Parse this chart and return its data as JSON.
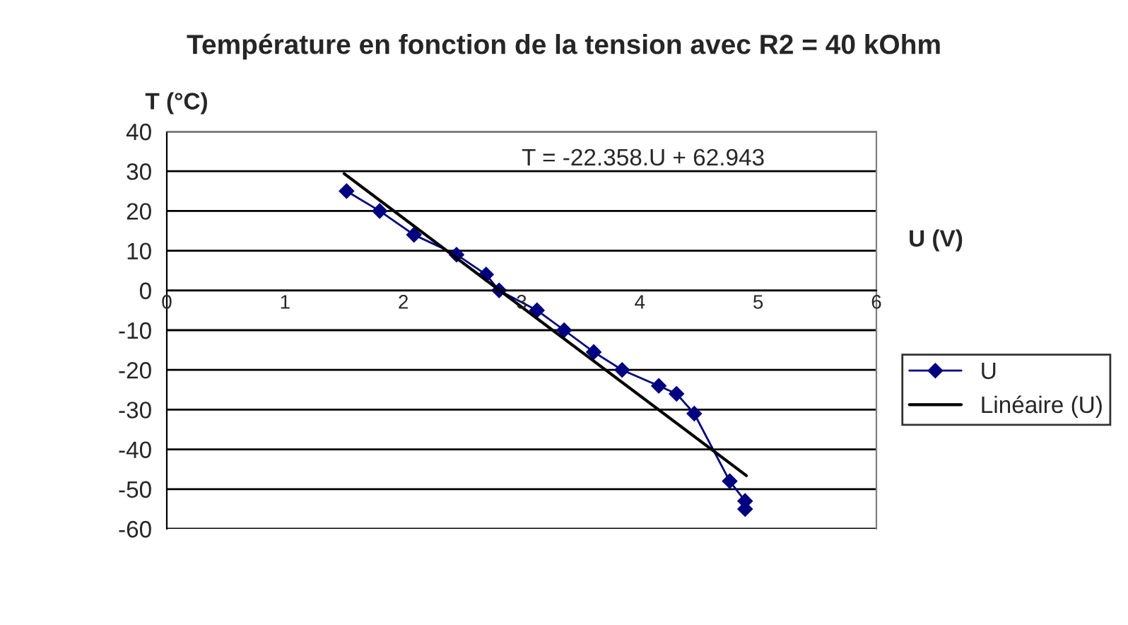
{
  "chart_data": {
    "type": "line",
    "title": "Température en fonction de la tension avec R2 = 40 kOhm",
    "xlabel": "U (V)",
    "ylabel": "T (°C)",
    "annotations": [
      "T = -22.358.U + 62.943"
    ],
    "series": [
      {
        "name": "U",
        "color": "#000080",
        "marker": "diamond",
        "x": [
          1.52,
          1.8,
          2.09,
          2.45,
          2.7,
          2.81,
          3.13,
          3.36,
          3.61,
          3.85,
          4.16,
          4.31,
          4.46,
          4.76,
          4.89,
          4.89
        ],
        "values": [
          25,
          20,
          14,
          9,
          4,
          0,
          -5,
          -10,
          -15.5,
          -20,
          -24,
          -26,
          -31,
          -48,
          -53,
          -55
        ]
      },
      {
        "name": "Linéaire (U)",
        "color": "#000000",
        "marker": "none",
        "x": [
          1.5,
          4.9
        ],
        "values": [
          29.4,
          -46.6
        ]
      }
    ],
    "xlim": [
      0,
      6
    ],
    "xticks": [
      0,
      1,
      2,
      3,
      4,
      5,
      6
    ],
    "ylim": [
      -60,
      40
    ],
    "yticks": [
      -60,
      -50,
      -40,
      -30,
      -20,
      -10,
      0,
      10,
      20,
      30,
      40
    ],
    "grid": "y",
    "legend": "right"
  }
}
